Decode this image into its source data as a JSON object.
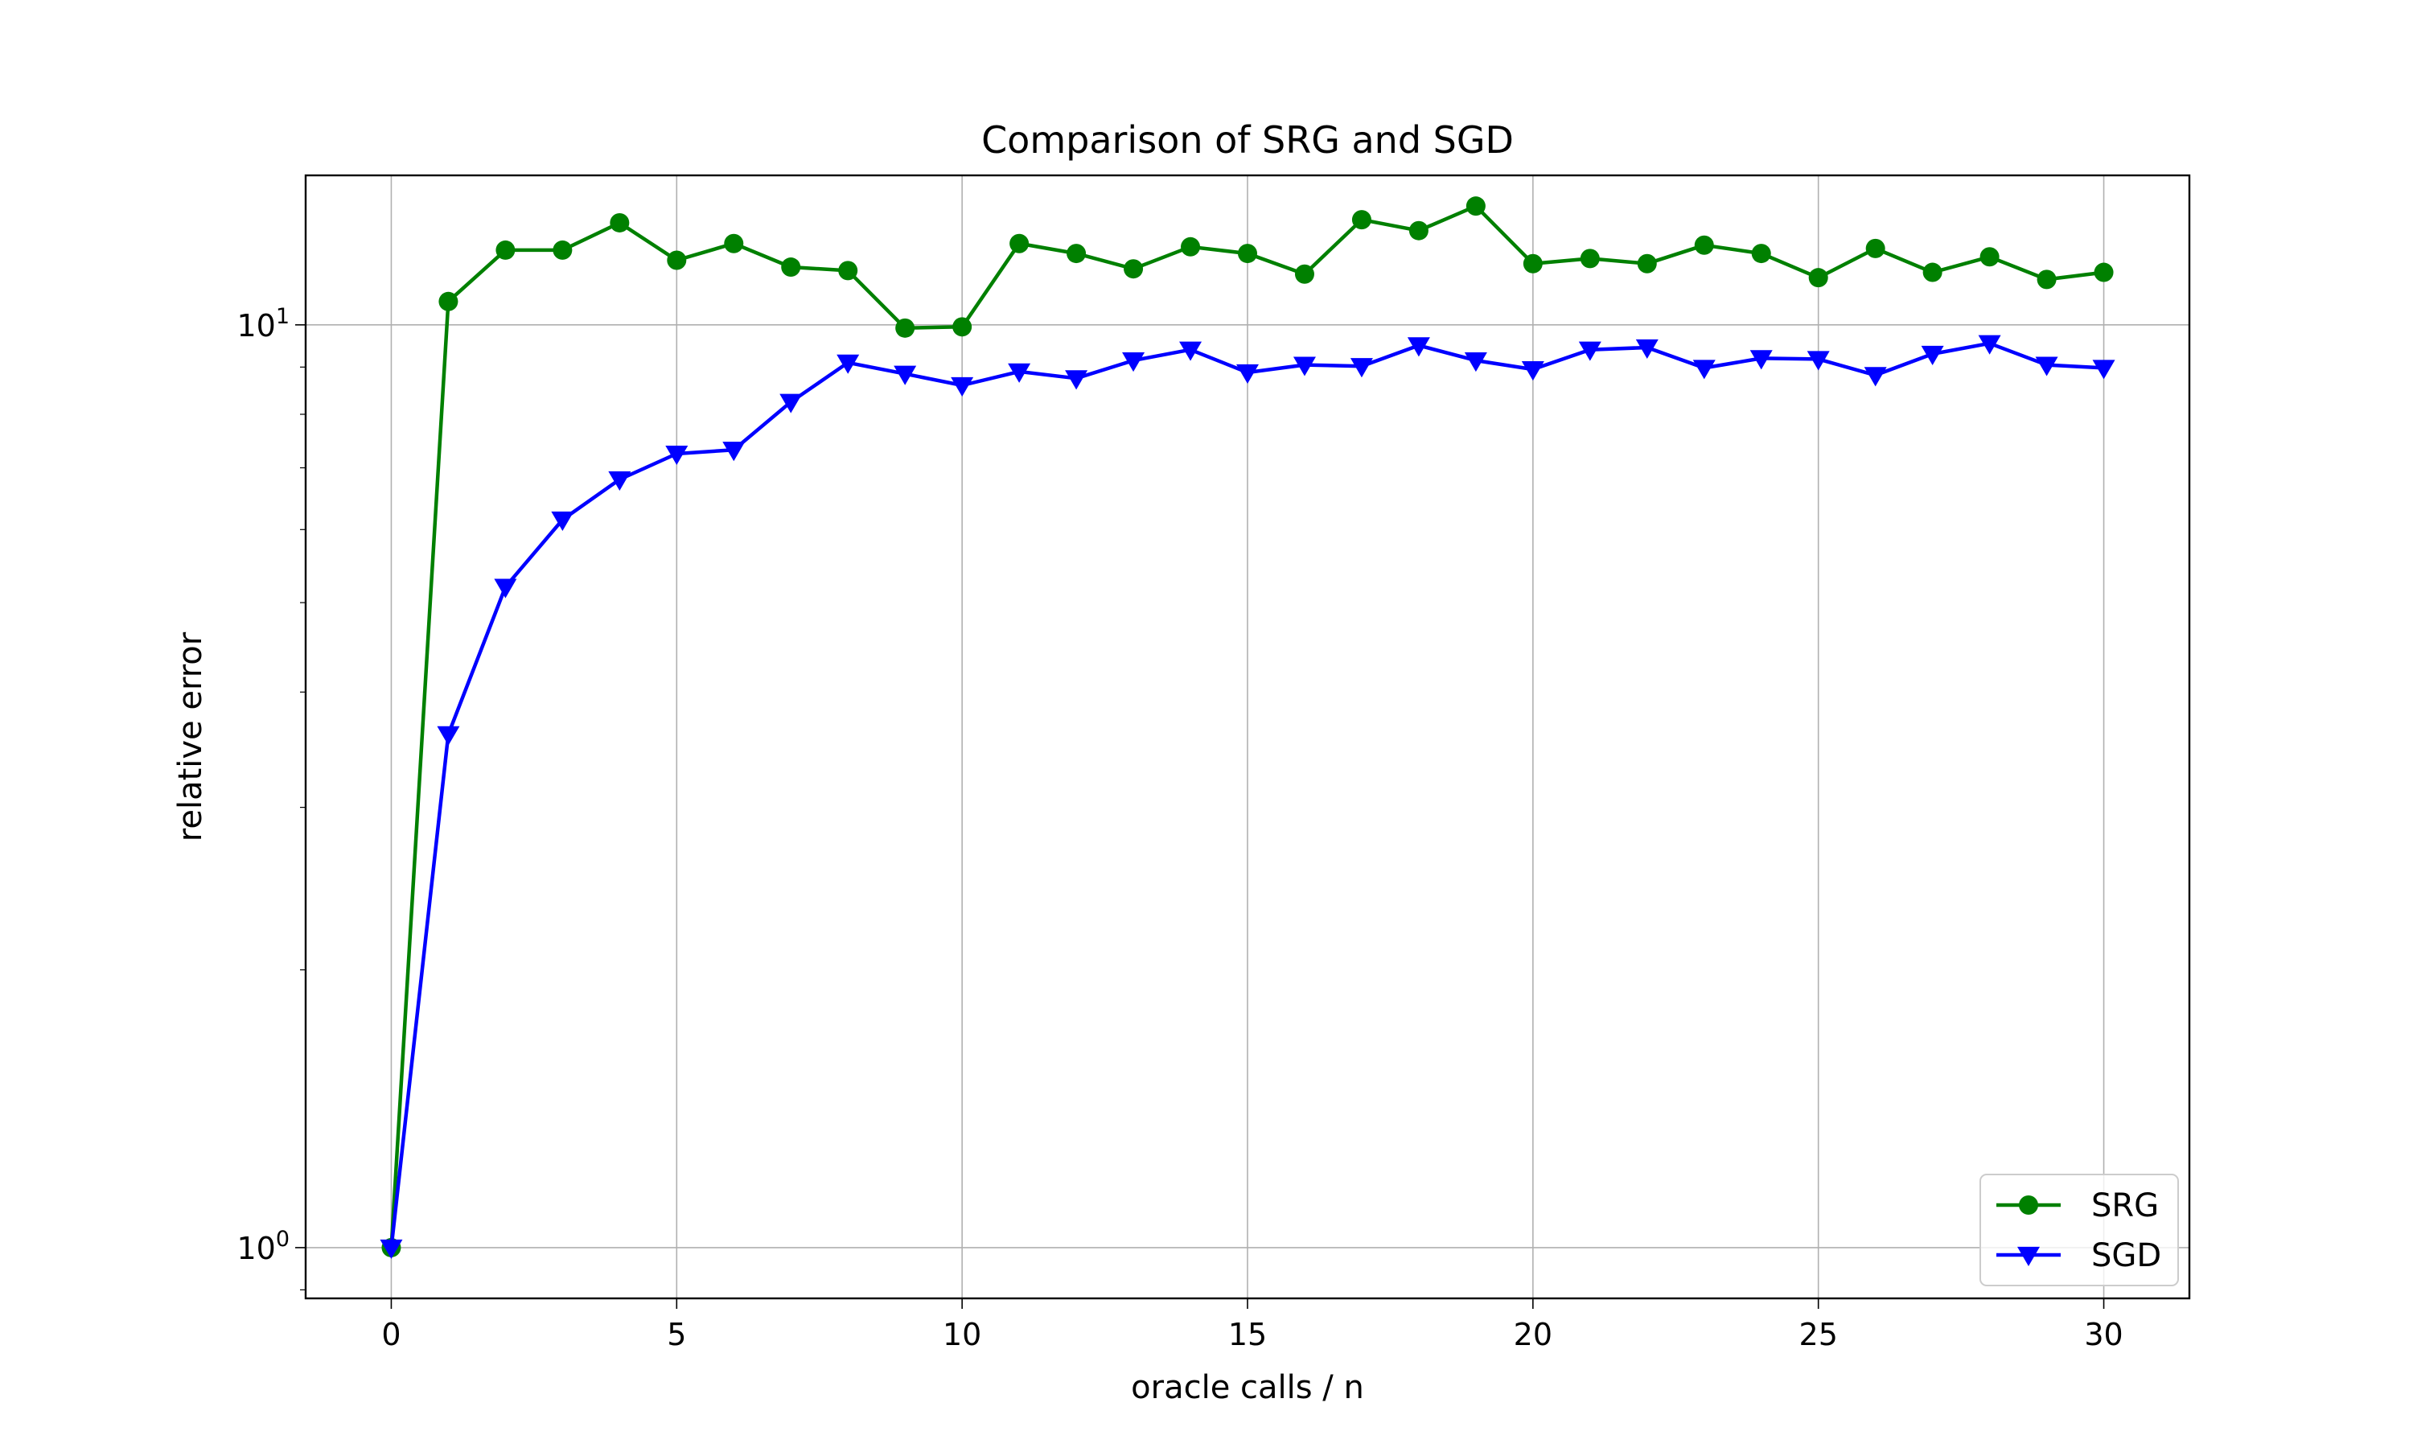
{
  "chart_data": {
    "type": "line",
    "title": "Comparison of SRG and SGD",
    "xlabel": "oracle calls / n",
    "ylabel": "relative error",
    "xlim": [
      -1.5,
      31.5
    ],
    "ylim_log10": [
      -0.055,
      1.162
    ],
    "yscale": "log",
    "grid": true,
    "legend_position": "lower-right",
    "x_ticks": [
      0,
      5,
      10,
      15,
      20,
      25,
      30
    ],
    "x_tick_labels": [
      "0",
      "5",
      "10",
      "15",
      "20",
      "25",
      "30"
    ],
    "y_ticks": [
      1,
      10
    ],
    "y_tick_labels": [
      {
        "base": "10",
        "exp": "0"
      },
      {
        "base": "10",
        "exp": "1"
      }
    ],
    "x": [
      0,
      1,
      2,
      3,
      4,
      5,
      6,
      7,
      8,
      9,
      10,
      11,
      12,
      13,
      14,
      15,
      16,
      17,
      18,
      19,
      20,
      21,
      22,
      23,
      24,
      25,
      26,
      27,
      28,
      29,
      30
    ],
    "series": [
      {
        "name": "SRG",
        "color": "#008000",
        "marker": "circle",
        "values": [
          1.0,
          10.6,
          12.05,
          12.05,
          12.9,
          11.75,
          12.25,
          11.55,
          11.45,
          9.92,
          9.95,
          12.25,
          11.95,
          11.5,
          12.15,
          11.95,
          11.35,
          13.0,
          12.65,
          13.45,
          11.65,
          11.8,
          11.65,
          12.2,
          11.95,
          11.25,
          12.1,
          11.4,
          11.85,
          11.2,
          11.4
        ]
      },
      {
        "name": "SGD",
        "color": "#0000ff",
        "marker": "triangle-down",
        "values": [
          1.0,
          3.6,
          5.2,
          6.15,
          6.8,
          7.25,
          7.32,
          8.25,
          9.1,
          8.85,
          8.6,
          8.9,
          8.75,
          9.15,
          9.4,
          8.88,
          9.05,
          9.02,
          9.5,
          9.15,
          8.95,
          9.4,
          9.45,
          8.98,
          9.2,
          9.18,
          8.82,
          9.3,
          9.55,
          9.05,
          8.98
        ]
      }
    ]
  }
}
